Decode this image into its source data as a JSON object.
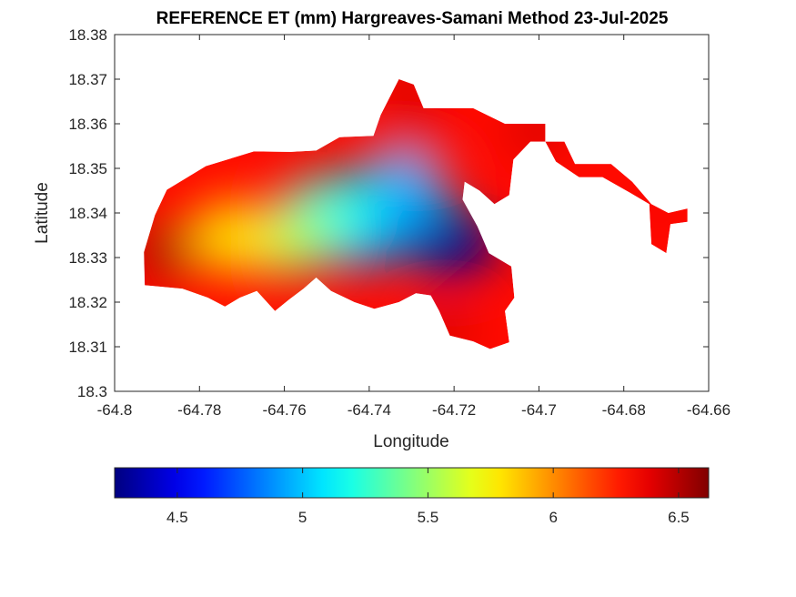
{
  "chart_data": {
    "type": "heatmap",
    "title": "REFERENCE ET (mm) Hargreaves-Samani Method  23-Jul-2025",
    "xlabel": "Longitude",
    "ylabel": "Latitude",
    "xlim": [
      -64.8,
      -64.66
    ],
    "ylim": [
      18.3,
      18.38
    ],
    "xticks": [
      -64.8,
      -64.78,
      -64.76,
      -64.74,
      -64.72,
      -64.7,
      -64.68,
      -64.66
    ],
    "yticks": [
      18.3,
      18.31,
      18.32,
      18.33,
      18.34,
      18.35,
      18.36,
      18.37,
      18.38
    ],
    "grid": false,
    "colorbar": {
      "location": "bottom",
      "colormap": "jet",
      "range": [
        4.25,
        6.62
      ],
      "ticks": [
        4.5,
        5,
        5.5,
        6,
        6.5
      ]
    },
    "land_outline": [
      [
        -64.7929,
        18.3238
      ],
      [
        -64.7931,
        18.3312
      ],
      [
        -64.7905,
        18.3395
      ],
      [
        -64.7877,
        18.3452
      ],
      [
        -64.7785,
        18.3505
      ],
      [
        -64.7672,
        18.3538
      ],
      [
        -64.7585,
        18.3537
      ],
      [
        -64.7525,
        18.354
      ],
      [
        -64.747,
        18.357
      ],
      [
        -64.739,
        18.3573
      ],
      [
        -64.7373,
        18.362
      ],
      [
        -64.733,
        18.37
      ],
      [
        -64.7295,
        18.3688
      ],
      [
        -64.7272,
        18.3635
      ],
      [
        -64.7225,
        18.3635
      ],
      [
        -64.7155,
        18.3635
      ],
      [
        -64.708,
        18.36
      ],
      [
        -64.6985,
        18.36
      ],
      [
        -64.6985,
        18.356
      ],
      [
        -64.694,
        18.356
      ],
      [
        -64.6915,
        18.351
      ],
      [
        -64.683,
        18.351
      ],
      [
        -64.678,
        18.347
      ],
      [
        -64.6735,
        18.342
      ],
      [
        -64.6695,
        18.34
      ],
      [
        -64.665,
        18.341
      ],
      [
        -64.665,
        18.338
      ],
      [
        -64.669,
        18.3375
      ],
      [
        -64.67,
        18.331
      ],
      [
        -64.6735,
        18.333
      ],
      [
        -64.674,
        18.342
      ],
      [
        -64.6785,
        18.3445
      ],
      [
        -64.685,
        18.348
      ],
      [
        -64.6905,
        18.348
      ],
      [
        -64.696,
        18.3515
      ],
      [
        -64.6985,
        18.356
      ],
      [
        -64.702,
        18.356
      ],
      [
        -64.706,
        18.352
      ],
      [
        -64.707,
        18.344
      ],
      [
        -64.7105,
        18.342
      ],
      [
        -64.714,
        18.345
      ],
      [
        -64.7175,
        18.347
      ],
      [
        -64.718,
        18.343
      ],
      [
        -64.7145,
        18.337
      ],
      [
        -64.7118,
        18.331
      ],
      [
        -64.7065,
        18.328
      ],
      [
        -64.7058,
        18.321
      ],
      [
        -64.708,
        18.318
      ],
      [
        -64.707,
        18.311
      ],
      [
        -64.7115,
        18.3095
      ],
      [
        -64.7155,
        18.3112
      ],
      [
        -64.721,
        18.3125
      ],
      [
        -64.7235,
        18.318
      ],
      [
        -64.7255,
        18.3215
      ],
      [
        -64.729,
        18.322
      ],
      [
        -64.733,
        18.32
      ],
      [
        -64.7388,
        18.3185
      ],
      [
        -64.7435,
        18.32
      ],
      [
        -64.749,
        18.3225
      ],
      [
        -64.7525,
        18.3255
      ],
      [
        -64.7555,
        18.323
      ],
      [
        -64.759,
        18.3205
      ],
      [
        -64.7622,
        18.318
      ],
      [
        -64.7665,
        18.3225
      ],
      [
        -64.7705,
        18.321
      ],
      [
        -64.774,
        18.319
      ],
      [
        -64.778,
        18.321
      ],
      [
        -64.784,
        18.323
      ]
    ],
    "field_centers": [
      {
        "lon": -64.721,
        "lat": 18.3333,
        "value": 4.3
      },
      {
        "lon": -64.743,
        "lat": 18.3375,
        "value": 4.85
      },
      {
        "lon": -64.7335,
        "lat": 18.3445,
        "value": 4.95
      },
      {
        "lon": -64.7495,
        "lat": 18.3395,
        "value": 5.2
      },
      {
        "lon": -64.7595,
        "lat": 18.3342,
        "value": 5.5
      },
      {
        "lon": -64.7715,
        "lat": 18.3345,
        "value": 5.8
      },
      {
        "lon": -64.7292,
        "lat": 18.3575,
        "value": 6.4
      },
      {
        "lon": -64.7005,
        "lat": 18.3585,
        "value": 6.45
      },
      {
        "lon": -64.7225,
        "lat": 18.3135,
        "value": 6.45
      },
      {
        "lon": -64.6715,
        "lat": 18.3405,
        "value": 6.35
      },
      {
        "lon": -64.7885,
        "lat": 18.3315,
        "value": 6.55
      },
      {
        "lon": -64.7312,
        "lat": 18.3692,
        "value": 6.6
      }
    ]
  }
}
